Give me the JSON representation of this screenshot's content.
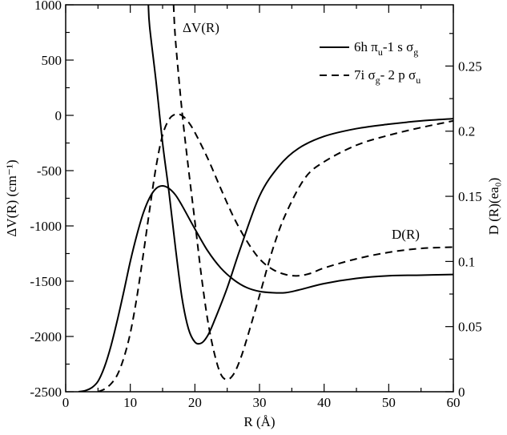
{
  "chart_data": {
    "type": "line",
    "xlabel": "R  (Å)",
    "ylabel_left": "ΔV(R)  (cm⁻¹)",
    "ylabel_right": "D (R)(ea₀)",
    "xlim": [
      0,
      60
    ],
    "ylim_left": [
      -2500,
      1000
    ],
    "ylim_right": [
      0,
      0.297
    ],
    "x_ticks": [
      0,
      10,
      20,
      30,
      40,
      50,
      60
    ],
    "y_left_ticks": [
      -2500,
      -2000,
      -1500,
      -1000,
      -500,
      0,
      500,
      1000
    ],
    "y_right_ticks": [
      0,
      0.05,
      0.1,
      0.15,
      0.2,
      0.25
    ],
    "y_right_tick_labels": [
      "0",
      "0.05",
      "0.1",
      "0.15",
      "0.2",
      "0.25"
    ],
    "grid": false,
    "legend_position": "top-right",
    "annotations": [
      {
        "text": "ΔV(R)",
        "near": "top of the ΔV curves"
      },
      {
        "text": "D(R)",
        "near": "right side of the D curves"
      }
    ],
    "series": [
      {
        "name": "6h π u-1 s σ g",
        "legend": {
          "base": "6h π",
          "s1": "u",
          "mid": "-1 s σ",
          "s2": "g"
        },
        "quantity": "ΔV(R)",
        "axis": "left",
        "style": "solid",
        "x": [
          12.8,
          13,
          14,
          15,
          16,
          17,
          18,
          19,
          20,
          21,
          22,
          23,
          25,
          27,
          30,
          33,
          36,
          40,
          45,
          50,
          55,
          60
        ],
        "y": [
          1000,
          800,
          300,
          -250,
          -700,
          -1200,
          -1650,
          -1930,
          -2050,
          -2060,
          -1990,
          -1860,
          -1560,
          -1210,
          -730,
          -460,
          -300,
          -190,
          -120,
          -80,
          -50,
          -30
        ]
      },
      {
        "name": "7i σ g- 2 p σ u",
        "legend": {
          "base": "7i σ",
          "s1": "g",
          "mid": "- 2 p σ",
          "s2": "u"
        },
        "quantity": "ΔV(R)",
        "axis": "left",
        "style": "dashed",
        "x": [
          16.7,
          17,
          18,
          19,
          20,
          21,
          22,
          23,
          24,
          25,
          26,
          27,
          28,
          30,
          32,
          34,
          37,
          40,
          45,
          50,
          55,
          60
        ],
        "y": [
          1000,
          680,
          40,
          -480,
          -960,
          -1450,
          -1860,
          -2150,
          -2340,
          -2390,
          -2340,
          -2210,
          -2030,
          -1630,
          -1220,
          -900,
          -570,
          -420,
          -270,
          -180,
          -110,
          -50
        ]
      },
      {
        "name": "6h π u-1 s σ g",
        "quantity": "D(R)",
        "axis": "right",
        "style": "solid",
        "x": [
          2,
          3,
          4,
          5,
          6,
          7,
          8,
          9,
          10,
          11,
          12,
          13,
          14,
          15,
          16,
          17,
          18,
          20,
          22,
          24,
          26,
          28,
          30,
          32,
          34,
          36,
          40,
          45,
          50,
          55,
          60
        ],
        "y": [
          0,
          0.0008,
          0.003,
          0.008,
          0.019,
          0.035,
          0.055,
          0.077,
          0.1,
          0.12,
          0.137,
          0.149,
          0.156,
          0.158,
          0.156,
          0.151,
          0.143,
          0.125,
          0.108,
          0.095,
          0.086,
          0.08,
          0.077,
          0.076,
          0.076,
          0.078,
          0.083,
          0.087,
          0.089,
          0.0895,
          0.09
        ]
      },
      {
        "name": "7i σ g- 2 p σ u",
        "quantity": "D(R)",
        "axis": "right",
        "style": "dashed",
        "x": [
          5,
          6,
          7,
          8,
          9,
          10,
          11,
          12,
          13,
          14,
          15,
          16,
          17,
          18,
          19,
          20,
          22,
          24,
          26,
          28,
          30,
          32,
          34,
          36,
          38,
          40,
          45,
          50,
          55,
          60
        ],
        "y": [
          0,
          0.002,
          0.006,
          0.013,
          0.026,
          0.045,
          0.072,
          0.105,
          0.14,
          0.173,
          0.197,
          0.209,
          0.213,
          0.212,
          0.207,
          0.199,
          0.179,
          0.156,
          0.134,
          0.116,
          0.102,
          0.094,
          0.09,
          0.089,
          0.091,
          0.095,
          0.102,
          0.107,
          0.11,
          0.111
        ]
      }
    ]
  }
}
